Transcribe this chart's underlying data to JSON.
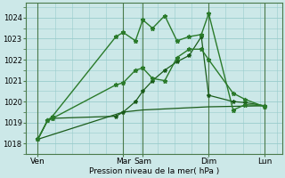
{
  "bg_color": "#cce8e8",
  "grid_color": "#99cccc",
  "line_dark": "#1a5c1a",
  "line_mid": "#2a7a2a",
  "line_light": "#3a9a3a",
  "ylabel": "Pression niveau de la mer( hPa )",
  "ylim": [
    1017.5,
    1024.7
  ],
  "yticks": [
    1018,
    1019,
    1020,
    1021,
    1022,
    1023,
    1024
  ],
  "xlim": [
    0,
    10.5
  ],
  "xtick_positions": [
    0.5,
    4.0,
    4.8,
    7.5,
    9.8
  ],
  "xtick_labels": [
    "Ven",
    "Mar",
    "Sam",
    "Dim",
    "Lun"
  ],
  "vline_positions": [
    0.5,
    4.0,
    4.8,
    7.5,
    9.8
  ],
  "s1_x": [
    0.5,
    0.9,
    1.1,
    3.7,
    4.0,
    4.5,
    4.8,
    5.2,
    5.7,
    6.2,
    6.7,
    7.2,
    7.5,
    8.5,
    9.0,
    9.8
  ],
  "s1_y": [
    1018.2,
    1019.1,
    1019.3,
    1023.1,
    1023.3,
    1022.9,
    1023.9,
    1023.5,
    1024.1,
    1022.9,
    1023.1,
    1023.2,
    1024.2,
    1019.6,
    1019.85,
    1019.8
  ],
  "s2_x": [
    0.5,
    0.9,
    1.1,
    3.7,
    4.0,
    4.5,
    4.8,
    5.2,
    5.7,
    6.2,
    6.7,
    7.2,
    7.5,
    8.5,
    9.0,
    9.8
  ],
  "s2_y": [
    1018.2,
    1019.1,
    1019.2,
    1020.8,
    1020.9,
    1021.5,
    1021.6,
    1021.1,
    1021.0,
    1022.1,
    1022.5,
    1022.5,
    1022.0,
    1020.4,
    1020.1,
    1019.75
  ],
  "s3_x": [
    0.5,
    0.9,
    1.1,
    3.7,
    4.0,
    4.5,
    4.8,
    5.2,
    5.7,
    6.2,
    6.7,
    7.2,
    7.5,
    8.5,
    9.0,
    9.8
  ],
  "s3_y": [
    1018.2,
    1019.1,
    1019.2,
    1019.3,
    1019.5,
    1020.0,
    1020.5,
    1021.0,
    1021.5,
    1021.9,
    1022.2,
    1023.1,
    1020.3,
    1020.0,
    1019.95,
    1019.8
  ],
  "s4_x": [
    0.5,
    4.0,
    4.8,
    7.5,
    9.8
  ],
  "s4_y": [
    1018.2,
    1019.5,
    1019.6,
    1019.75,
    1019.8
  ]
}
